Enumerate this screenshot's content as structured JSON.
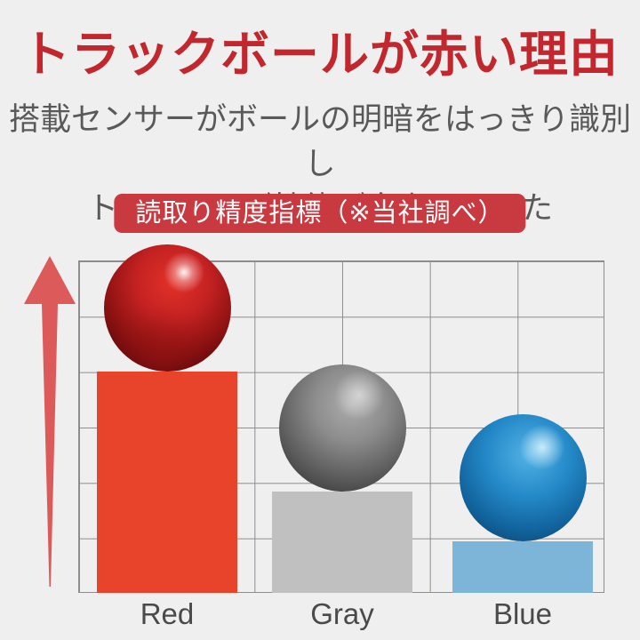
{
  "page": {
    "background": "#efefef",
    "title": {
      "text": "トラックボールが赤い理由",
      "color": "#c1272d"
    },
    "subtitle": {
      "line1": "搭載センサーがボールの明暗をはっきり識別し",
      "line2": "トラッキング性能が向上しました",
      "color": "#595959"
    },
    "badge": {
      "text": "読取り精度指標（※当社調べ）",
      "bg": "#c93a40",
      "color": "#ffffff"
    }
  },
  "chart_data": {
    "type": "bar",
    "title": "読取り精度指標（※当社調べ）",
    "categories": [
      "Red",
      "Gray",
      "Blue"
    ],
    "values": [
      4.0,
      1.83,
      0.93
    ],
    "value_unit": "grid rows (no numeric axis shown; heights relative, max grid = 6 rows)",
    "ylim": [
      0,
      6
    ],
    "xlabel": "",
    "ylabel": "",
    "grid": {
      "columns": 6,
      "rows": 6,
      "line_color": "#8d8d8d",
      "shown": true
    },
    "legend": "none",
    "bar_colors": [
      "#e8432b",
      "#c0c0c0",
      "#7db5d9"
    ],
    "markers": [
      {
        "category": "Red",
        "icon": "glossy-red-trackball-sphere",
        "sits_on": "bar-top"
      },
      {
        "category": "Gray",
        "icon": "glossy-gray-trackball-sphere",
        "sits_on": "bar-top"
      },
      {
        "category": "Blue",
        "icon": "glossy-blue-trackball-sphere",
        "sits_on": "bar-top"
      }
    ],
    "annotations": [
      "red upward arrow along left side of grid (higher = better accuracy)"
    ],
    "label_color": "#4a4a4a",
    "arrow_color": "#dc5a5a"
  },
  "layout_constants": {
    "note": "bar pixel geometry derived from values by script"
  }
}
